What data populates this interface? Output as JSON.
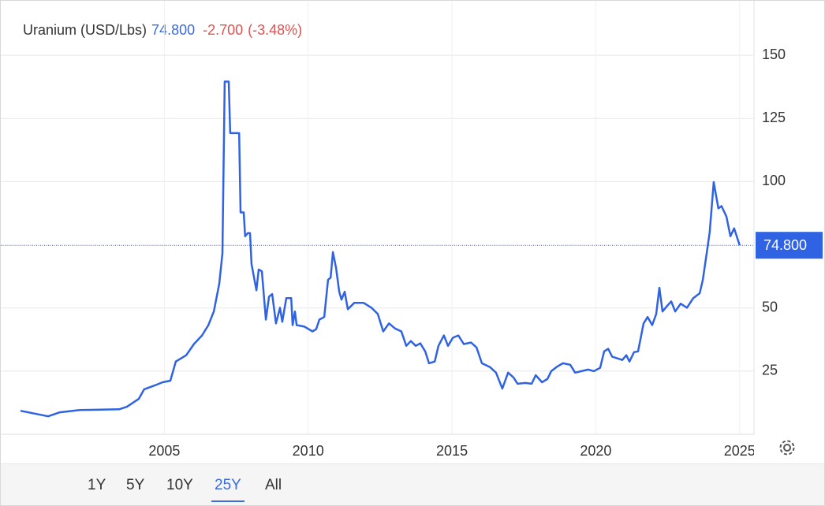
{
  "chart_data": {
    "type": "line",
    "title": "Uranium (USD/Lbs)",
    "price": "74.800",
    "change": "-2.700",
    "change_pct": "(-3.48%)",
    "color": "#2f63e4",
    "price_color": "#3a6be0",
    "change_color": "#e05252",
    "x": [
      2000.0,
      2000.96,
      2001.37,
      2002.06,
      2003.43,
      2003.7,
      2004.11,
      2004.3,
      2004.66,
      2004.94,
      2005.21,
      2005.4,
      2005.76,
      2006.03,
      2006.31,
      2006.53,
      2006.72,
      2006.91,
      2007.02,
      2007.1,
      2007.24,
      2007.29,
      2007.6,
      2007.65,
      2007.76,
      2007.81,
      2007.9,
      2007.98,
      2008.03,
      2008.12,
      2008.2,
      2008.28,
      2008.39,
      2008.53,
      2008.64,
      2008.75,
      2008.88,
      2009.02,
      2009.1,
      2009.24,
      2009.41,
      2009.46,
      2009.54,
      2009.6,
      2009.87,
      2010.15,
      2010.28,
      2010.39,
      2010.56,
      2010.69,
      2010.78,
      2010.86,
      2010.97,
      2011.08,
      2011.16,
      2011.27,
      2011.38,
      2011.6,
      2011.93,
      2012.2,
      2012.42,
      2012.61,
      2012.81,
      2013.02,
      2013.24,
      2013.41,
      2013.57,
      2013.74,
      2013.9,
      2014.07,
      2014.2,
      2014.4,
      2014.53,
      2014.72,
      2014.86,
      2015.03,
      2015.22,
      2015.41,
      2015.66,
      2015.85,
      2016.04,
      2016.32,
      2016.53,
      2016.75,
      2016.95,
      2017.14,
      2017.28,
      2017.55,
      2017.77,
      2017.91,
      2018.13,
      2018.32,
      2018.45,
      2018.67,
      2018.86,
      2019.11,
      2019.28,
      2019.5,
      2019.74,
      2019.93,
      2020.15,
      2020.29,
      2020.43,
      2020.57,
      2020.92,
      2021.06,
      2021.17,
      2021.33,
      2021.47,
      2021.66,
      2021.8,
      2021.96,
      2022.1,
      2022.21,
      2022.32,
      2022.48,
      2022.62,
      2022.76,
      2022.95,
      2023.17,
      2023.39,
      2023.61,
      2023.72,
      2023.86,
      2023.96,
      2024.1,
      2024.26,
      2024.37,
      2024.54,
      2024.68,
      2024.81,
      2025.0
    ],
    "values": [
      9.3,
      7.1,
      8.7,
      9.6,
      9.9,
      10.9,
      14,
      17.8,
      19.3,
      20.6,
      21.2,
      28.8,
      31.3,
      35.7,
      39.1,
      43.2,
      48.6,
      59.6,
      71.5,
      139.6,
      139.6,
      119.2,
      119.2,
      87.8,
      87.8,
      78.4,
      79.6,
      79.6,
      67.4,
      62,
      57,
      65.2,
      64.5,
      45.4,
      54.5,
      55.5,
      43.9,
      50.1,
      44.5,
      53.9,
      53.9,
      43.2,
      48.6,
      43.2,
      42.6,
      40.7,
      41.6,
      45.4,
      46.4,
      61.1,
      62,
      72.1,
      65.8,
      56.4,
      53.3,
      56.4,
      49.5,
      52,
      52,
      50.1,
      47.6,
      40.7,
      43.9,
      41.9,
      40.7,
      35,
      36.9,
      35,
      36,
      32.8,
      28.1,
      28.8,
      35,
      39.1,
      35,
      38.2,
      39.1,
      35.7,
      36.3,
      34.4,
      28.1,
      26.6,
      24.4,
      18.1,
      24.4,
      22.5,
      20,
      20.3,
      20,
      23.4,
      20.6,
      21.9,
      25,
      26.9,
      28.1,
      27.5,
      24.4,
      25,
      25.6,
      25,
      26.3,
      32.8,
      33.8,
      30.7,
      29.4,
      31.3,
      28.8,
      32.5,
      32.8,
      43.9,
      46.4,
      43.2,
      47.6,
      58,
      48.6,
      50.8,
      52.6,
      48.6,
      51.7,
      50.1,
      53.9,
      55.8,
      61.1,
      72.1,
      80,
      99.8,
      89.4,
      90.3,
      86.2,
      78.4,
      81.5,
      74.8
    ],
    "xlim": [
      2000,
      2025.5
    ],
    "xticks": [
      2005,
      2010,
      2015,
      2020,
      2025
    ],
    "ylim": [
      0,
      170
    ],
    "yticks": [
      25,
      50,
      100,
      125,
      150
    ],
    "grid": true,
    "range_buttons": [
      "1Y",
      "5Y",
      "10Y",
      "25Y",
      "All"
    ],
    "active_range": "25Y"
  }
}
